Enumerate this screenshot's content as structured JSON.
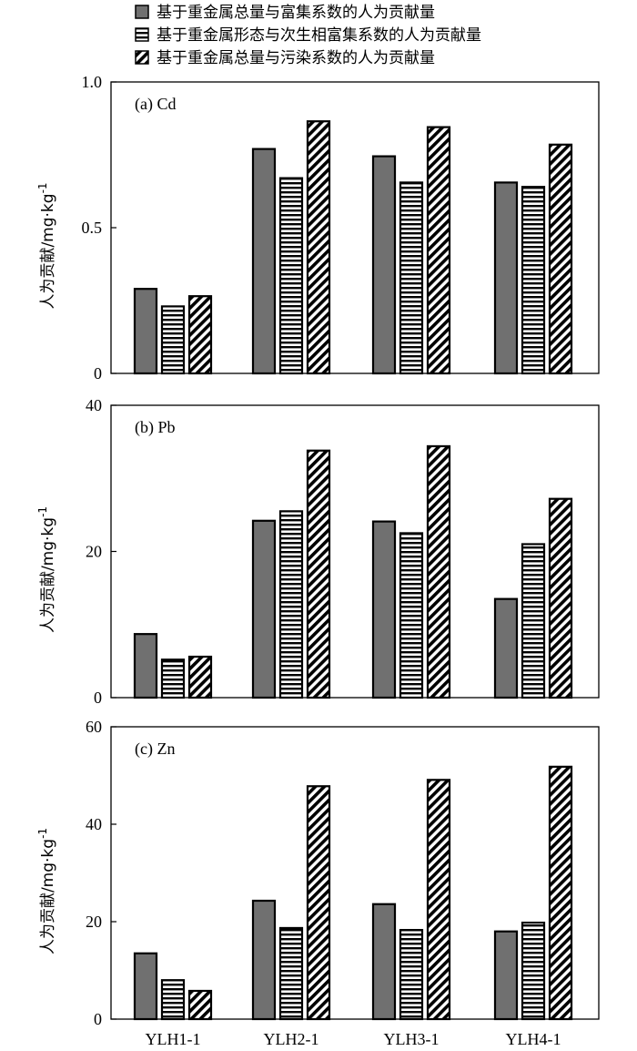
{
  "chart_data": {
    "type": "bar",
    "categories": [
      "YLH1-1",
      "YLH2-1",
      "YLH3-1",
      "YLH4-1"
    ],
    "legend": {
      "placement": "top",
      "entries": [
        "基于重金属总量与富集系数的人为贡献量",
        "基于重金属形态与次生相富集系数的人为贡献量",
        "基于重金属总量与污染系数的人为贡献量"
      ]
    },
    "fills": [
      "solid-gray",
      "horizontal-stripes",
      "diagonal-stripes"
    ],
    "colors": {
      "solid": "#707070",
      "stroke": "#000000"
    },
    "ylabel_main": "人为贡献/mg·kg",
    "ylabel_sup": "-1",
    "panels": [
      {
        "label": "(a) Cd",
        "ylim": [
          0,
          1.0
        ],
        "yticks": [
          "0",
          "0.5",
          "1.0"
        ],
        "ytick_values": [
          0,
          0.5,
          1.0
        ],
        "series": [
          {
            "values": [
              0.29,
              0.77,
              0.745,
              0.655
            ]
          },
          {
            "values": [
              0.23,
              0.67,
              0.655,
              0.64
            ]
          },
          {
            "values": [
              0.265,
              0.865,
              0.845,
              0.785
            ]
          }
        ]
      },
      {
        "label": "(b) Pb",
        "ylim": [
          0,
          40
        ],
        "yticks": [
          "0",
          "20",
          "40"
        ],
        "ytick_values": [
          0,
          20,
          40
        ],
        "series": [
          {
            "values": [
              8.7,
              24.2,
              24.1,
              13.5
            ]
          },
          {
            "values": [
              5.2,
              25.5,
              22.5,
              21.0
            ]
          },
          {
            "values": [
              5.6,
              33.8,
              34.4,
              27.2
            ]
          }
        ]
      },
      {
        "label": "(c) Zn",
        "ylim": [
          0,
          60
        ],
        "yticks": [
          "0",
          "20",
          "40",
          "60"
        ],
        "ytick_values": [
          0,
          20,
          40,
          60
        ],
        "series": [
          {
            "values": [
              13.5,
              24.3,
              23.6,
              18.0
            ]
          },
          {
            "values": [
              8.0,
              18.7,
              18.3,
              19.8
            ]
          },
          {
            "values": [
              5.8,
              47.8,
              49.1,
              51.8
            ]
          }
        ]
      }
    ]
  }
}
